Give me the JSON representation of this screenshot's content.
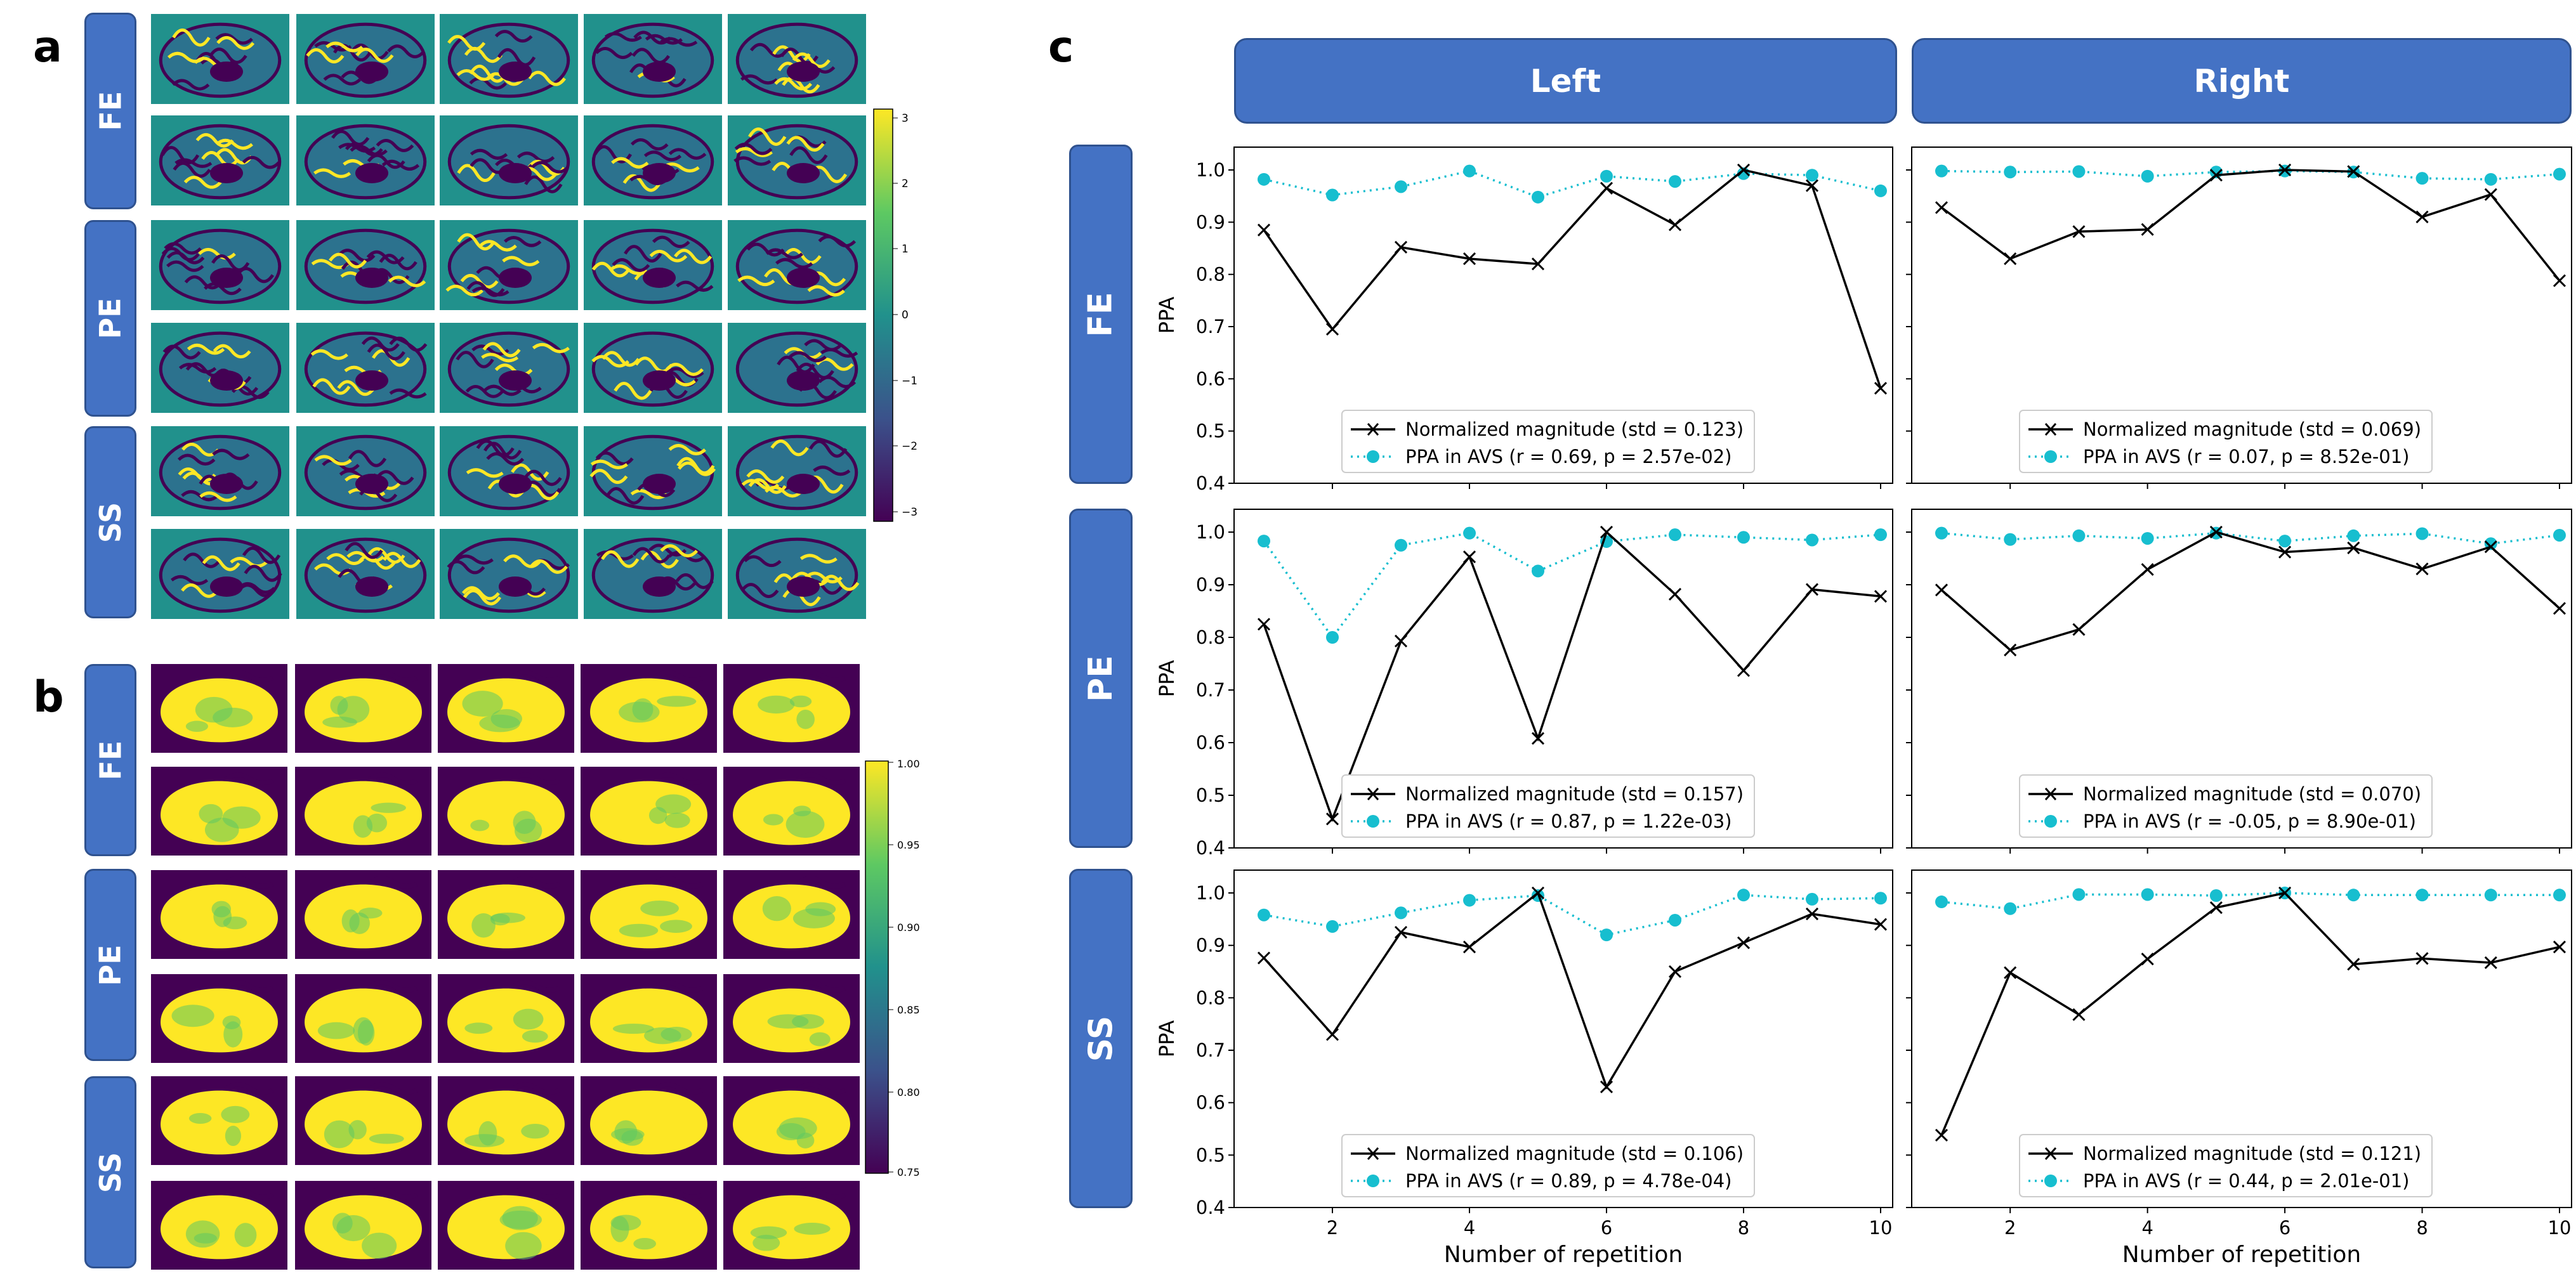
{
  "figure": {
    "panel_labels": [
      "a",
      "b",
      "c"
    ],
    "row_groups": [
      "FE",
      "PE",
      "SS"
    ],
    "column_headers": [
      "Left",
      "Right"
    ],
    "colorbar_a": {
      "ticks": [
        "3",
        "2",
        "1",
        "0",
        "−1",
        "−2",
        "−3"
      ],
      "range": [
        -3,
        3
      ]
    },
    "colorbar_b": {
      "ticks": [
        "1.00",
        "0.95",
        "0.90",
        "0.85",
        "0.80",
        "0.75"
      ],
      "range": [
        0.75,
        1.0
      ]
    },
    "colors": {
      "badge": "#4472c4",
      "magnitude": "#000000",
      "ppa": "#17becf",
      "phase_bg": "#21918c",
      "mag_bg": "#440154",
      "mag_fg": "#fde725"
    }
  },
  "chart_data": [
    {
      "type": "line",
      "group": "FE",
      "side": "Left",
      "ylabel": "PPA",
      "xlabel": "",
      "ylim": [
        0.4,
        1.0
      ],
      "x": [
        1,
        2,
        3,
        4,
        5,
        6,
        7,
        8,
        9,
        10
      ],
      "yticks": [
        "0.4",
        "0.5",
        "0.6",
        "0.7",
        "0.8",
        "0.9",
        "1.0"
      ],
      "xticks": [],
      "series": [
        {
          "name": "Normalized magnitude (std = 0.123)",
          "values": [
            0.885,
            0.695,
            0.852,
            0.83,
            0.82,
            0.965,
            0.895,
            1.0,
            0.97,
            0.582
          ]
        },
        {
          "name": "PPA in AVS (r = 0.69, p = 2.57e-02)",
          "values": [
            0.982,
            0.952,
            0.968,
            0.998,
            0.948,
            0.988,
            0.978,
            0.993,
            0.99,
            0.96
          ]
        }
      ]
    },
    {
      "type": "line",
      "group": "FE",
      "side": "Right",
      "ylabel": "",
      "xlabel": "",
      "ylim": [
        0.4,
        1.0
      ],
      "x": [
        1,
        2,
        3,
        4,
        5,
        6,
        7,
        8,
        9,
        10
      ],
      "yticks": [],
      "xticks": [],
      "series": [
        {
          "name": "Normalized magnitude (std = 0.069)",
          "values": [
            0.928,
            0.83,
            0.882,
            0.886,
            0.99,
            1.0,
            0.997,
            0.91,
            0.953,
            0.788
          ]
        },
        {
          "name": "PPA in AVS (r = 0.07, p = 8.52e-01)",
          "values": [
            0.998,
            0.996,
            0.997,
            0.988,
            0.996,
            0.998,
            0.996,
            0.984,
            0.982,
            0.992
          ]
        }
      ]
    },
    {
      "type": "line",
      "group": "PE",
      "side": "Left",
      "ylabel": "PPA",
      "xlabel": "",
      "ylim": [
        0.4,
        1.0
      ],
      "x": [
        1,
        2,
        3,
        4,
        5,
        6,
        7,
        8,
        9,
        10
      ],
      "yticks": [
        "0.4",
        "0.5",
        "0.6",
        "0.7",
        "0.8",
        "0.9",
        "1.0"
      ],
      "xticks": [],
      "series": [
        {
          "name": "Normalized magnitude (std = 0.157)",
          "values": [
            0.825,
            0.455,
            0.793,
            0.953,
            0.608,
            1.0,
            0.882,
            0.737,
            0.891,
            0.878
          ]
        },
        {
          "name": "PPA in AVS (r = 0.87, p = 1.22e-03)",
          "values": [
            0.983,
            0.8,
            0.975,
            0.998,
            0.926,
            0.982,
            0.995,
            0.99,
            0.985,
            0.995
          ]
        }
      ]
    },
    {
      "type": "line",
      "group": "PE",
      "side": "Right",
      "ylabel": "",
      "xlabel": "",
      "ylim": [
        0.4,
        1.0
      ],
      "x": [
        1,
        2,
        3,
        4,
        5,
        6,
        7,
        8,
        9,
        10
      ],
      "yticks": [],
      "xticks": [],
      "series": [
        {
          "name": "Normalized magnitude (std = 0.070)",
          "values": [
            0.89,
            0.776,
            0.815,
            0.929,
            1.0,
            0.962,
            0.97,
            0.93,
            0.972,
            0.855
          ]
        },
        {
          "name": "PPA in AVS (r = -0.05, p = 8.90e-01)",
          "values": [
            0.998,
            0.986,
            0.993,
            0.988,
            0.998,
            0.983,
            0.993,
            0.997,
            0.978,
            0.994
          ]
        }
      ]
    },
    {
      "type": "line",
      "group": "SS",
      "side": "Left",
      "ylabel": "PPA",
      "xlabel": "Number of repetition",
      "ylim": [
        0.4,
        1.0
      ],
      "x": [
        1,
        2,
        3,
        4,
        5,
        6,
        7,
        8,
        9,
        10
      ],
      "yticks": [
        "0.4",
        "0.5",
        "0.6",
        "0.7",
        "0.8",
        "0.9",
        "1.0"
      ],
      "xticks": [
        "2",
        "4",
        "6",
        "8",
        "10"
      ],
      "series": [
        {
          "name": "Normalized magnitude (std = 0.106)",
          "values": [
            0.876,
            0.73,
            0.925,
            0.897,
            1.0,
            0.63,
            0.85,
            0.905,
            0.96,
            0.94
          ]
        },
        {
          "name": "PPA in AVS (r = 0.89, p = 4.78e-04)",
          "values": [
            0.958,
            0.936,
            0.962,
            0.986,
            0.995,
            0.92,
            0.948,
            0.996,
            0.988,
            0.99
          ]
        }
      ]
    },
    {
      "type": "line",
      "group": "SS",
      "side": "Right",
      "ylabel": "",
      "xlabel": "Number of repetition",
      "ylim": [
        0.4,
        1.0
      ],
      "x": [
        1,
        2,
        3,
        4,
        5,
        6,
        7,
        8,
        9,
        10
      ],
      "yticks": [],
      "xticks": [
        "2",
        "4",
        "6",
        "8",
        "10"
      ],
      "series": [
        {
          "name": "Normalized magnitude (std = 0.121)",
          "values": [
            0.538,
            0.848,
            0.768,
            0.874,
            0.972,
            1.0,
            0.864,
            0.875,
            0.867,
            0.897
          ]
        },
        {
          "name": "PPA in AVS (r = 0.44, p = 2.01e-01)",
          "values": [
            0.983,
            0.97,
            0.997,
            0.997,
            0.995,
            1.0,
            0.996,
            0.996,
            0.996,
            0.996
          ]
        }
      ]
    }
  ]
}
